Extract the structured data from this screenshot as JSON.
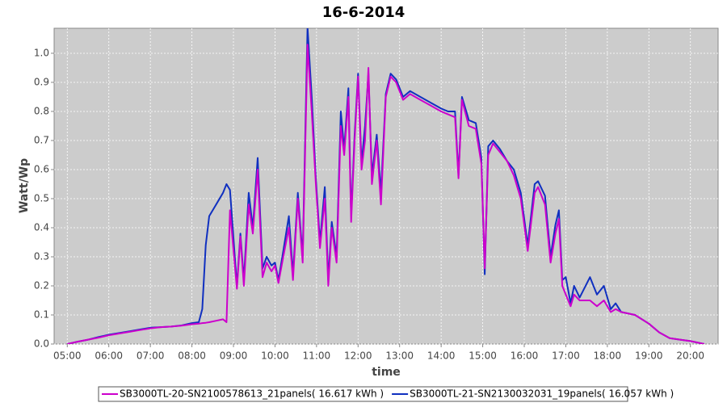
{
  "chart_data": {
    "type": "line",
    "title": "16-6-2014",
    "x_label": "time",
    "y_label": "Watt/Wp",
    "x": [
      "05:00",
      "05:15",
      "05:30",
      "05:45",
      "06:00",
      "06:15",
      "06:30",
      "06:45",
      "07:00",
      "07:15",
      "07:30",
      "07:45",
      "08:00",
      "08:10",
      "08:15",
      "08:20",
      "08:25",
      "08:35",
      "08:45",
      "08:50",
      "08:55",
      "09:05",
      "09:10",
      "09:15",
      "09:22",
      "09:28",
      "09:35",
      "09:42",
      "09:48",
      "09:55",
      "10:00",
      "10:05",
      "10:12",
      "10:20",
      "10:26",
      "10:33",
      "10:40",
      "10:47",
      "10:53",
      "10:59",
      "11:05",
      "11:12",
      "11:17",
      "11:22",
      "11:29",
      "11:35",
      "11:40",
      "11:46",
      "11:50",
      "11:55",
      "12:00",
      "12:05",
      "12:10",
      "12:15",
      "12:20",
      "12:27",
      "12:33",
      "12:40",
      "12:47",
      "12:55",
      "13:05",
      "13:15",
      "13:30",
      "13:45",
      "14:00",
      "14:10",
      "14:20",
      "14:25",
      "14:30",
      "14:40",
      "14:50",
      "14:58",
      "15:03",
      "15:08",
      "15:15",
      "15:25",
      "15:35",
      "15:45",
      "15:55",
      "16:05",
      "16:15",
      "16:20",
      "16:30",
      "16:38",
      "16:45",
      "16:50",
      "16:55",
      "17:00",
      "17:07",
      "17:12",
      "17:20",
      "17:35",
      "17:45",
      "17:55",
      "18:05",
      "18:12",
      "18:20",
      "18:40",
      "19:00",
      "19:15",
      "19:30",
      "19:45",
      "20:00",
      "20:20"
    ],
    "series": [
      {
        "name": "SB3000TL-20-SN2100578613_21panels( 16.617 kWh )",
        "color": "#cc00cc",
        "values": [
          0.0,
          0.008,
          0.015,
          0.022,
          0.03,
          0.036,
          0.042,
          0.048,
          0.054,
          0.058,
          0.06,
          0.063,
          0.068,
          0.07,
          0.072,
          0.073,
          0.075,
          0.08,
          0.085,
          0.075,
          0.46,
          0.19,
          0.37,
          0.2,
          0.48,
          0.38,
          0.6,
          0.23,
          0.28,
          0.25,
          0.27,
          0.21,
          0.3,
          0.4,
          0.22,
          0.5,
          0.28,
          1.03,
          0.8,
          0.55,
          0.33,
          0.5,
          0.2,
          0.4,
          0.28,
          0.75,
          0.65,
          0.85,
          0.42,
          0.7,
          0.92,
          0.6,
          0.7,
          0.95,
          0.55,
          0.7,
          0.48,
          0.85,
          0.92,
          0.9,
          0.84,
          0.86,
          0.84,
          0.82,
          0.8,
          0.79,
          0.78,
          0.57,
          0.84,
          0.75,
          0.74,
          0.62,
          0.26,
          0.65,
          0.69,
          0.66,
          0.63,
          0.58,
          0.5,
          0.32,
          0.52,
          0.54,
          0.48,
          0.28,
          0.38,
          0.43,
          0.2,
          0.17,
          0.13,
          0.17,
          0.15,
          0.15,
          0.13,
          0.15,
          0.11,
          0.12,
          0.11,
          0.1,
          0.07,
          0.04,
          0.02,
          0.015,
          0.01,
          0.0
        ]
      },
      {
        "name": "SB3000TL-21-SN2130032031_19panels( 16.057 kWh )",
        "color": "#1030c0",
        "values": [
          0.0,
          0.008,
          0.015,
          0.024,
          0.032,
          0.038,
          0.044,
          0.05,
          0.056,
          0.058,
          0.06,
          0.064,
          0.072,
          0.075,
          0.12,
          0.34,
          0.44,
          0.48,
          0.52,
          0.55,
          0.53,
          0.2,
          0.38,
          0.22,
          0.52,
          0.4,
          0.64,
          0.26,
          0.3,
          0.27,
          0.28,
          0.22,
          0.32,
          0.44,
          0.24,
          0.52,
          0.3,
          1.09,
          0.85,
          0.57,
          0.35,
          0.54,
          0.22,
          0.42,
          0.3,
          0.8,
          0.67,
          0.88,
          0.44,
          0.72,
          0.93,
          0.62,
          0.75,
          0.93,
          0.58,
          0.72,
          0.52,
          0.86,
          0.93,
          0.91,
          0.85,
          0.87,
          0.85,
          0.83,
          0.81,
          0.8,
          0.8,
          0.58,
          0.85,
          0.77,
          0.76,
          0.64,
          0.24,
          0.68,
          0.7,
          0.67,
          0.63,
          0.6,
          0.52,
          0.34,
          0.55,
          0.56,
          0.51,
          0.3,
          0.41,
          0.46,
          0.22,
          0.23,
          0.14,
          0.2,
          0.16,
          0.23,
          0.17,
          0.2,
          0.12,
          0.14,
          0.11,
          0.1,
          0.07,
          0.04,
          0.02,
          0.015,
          0.01,
          0.0
        ]
      }
    ],
    "xlim": [
      "04:41",
      "20:40"
    ],
    "xticks": [
      "05:00",
      "06:00",
      "07:00",
      "08:00",
      "09:00",
      "10:00",
      "11:00",
      "12:00",
      "13:00",
      "14:00",
      "15:00",
      "16:00",
      "17:00",
      "18:00",
      "19:00",
      "20:00"
    ],
    "ylim": [
      0,
      1.086
    ],
    "yticks": [
      {
        "value": 0,
        "label": "0.0"
      },
      0.1,
      0.2,
      0.3,
      0.4,
      0.5,
      0.6,
      0.7,
      0.8,
      0.9,
      {
        "value": 1,
        "label": "1.0"
      }
    ],
    "grid": true,
    "legend": "bottom"
  }
}
